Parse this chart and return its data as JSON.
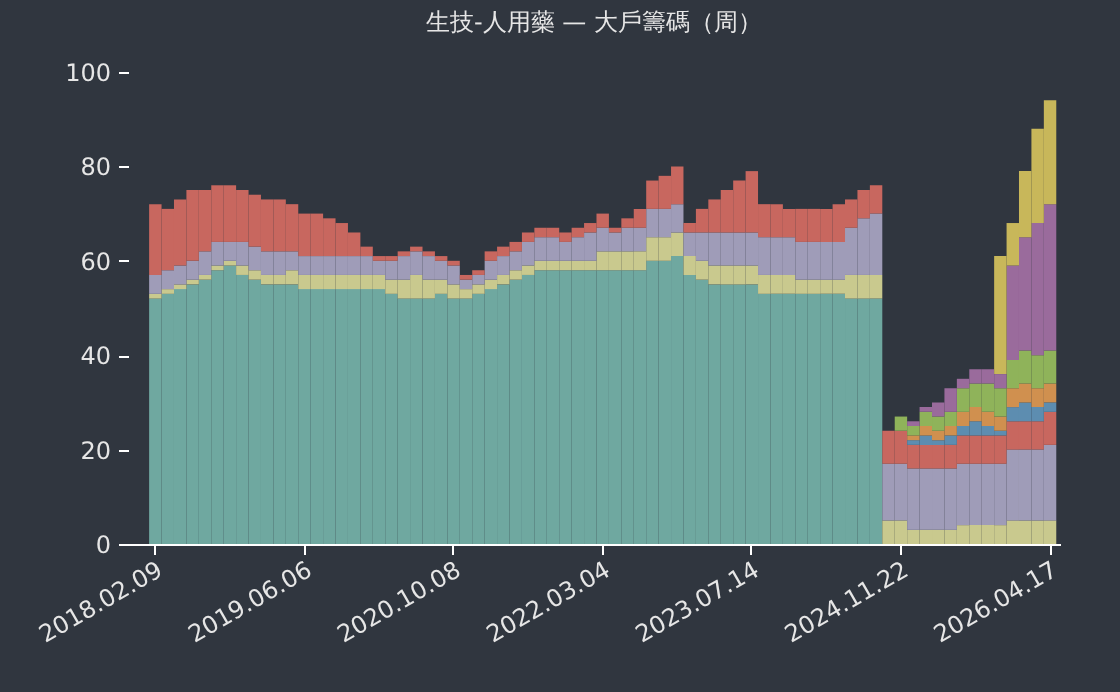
{
  "chart_data": {
    "type": "bar",
    "title": "生技-人用藥 — 大戶籌碼（周）",
    "stacked": true,
    "categories": [
      "2018.02.09",
      null,
      null,
      null,
      null,
      null,
      null,
      null,
      null,
      null,
      null,
      null,
      "2019.06.06",
      null,
      null,
      null,
      null,
      null,
      null,
      null,
      null,
      null,
      null,
      null,
      "2020.10.08",
      null,
      null,
      null,
      null,
      null,
      null,
      null,
      null,
      null,
      null,
      null,
      "2022.03.04",
      null,
      null,
      null,
      null,
      null,
      null,
      null,
      null,
      null,
      null,
      null,
      "2023.07.14",
      null,
      null,
      null,
      null,
      null,
      null,
      null,
      null,
      null,
      null,
      null,
      "2024.11.22",
      null,
      null,
      null,
      null,
      null,
      null,
      null,
      null,
      null,
      null,
      null,
      "2026.04.17"
    ],
    "series": [
      {
        "color": "#6fa8a0",
        "values": [
          52,
          53,
          54,
          55,
          56,
          58,
          59,
          57,
          56,
          55,
          55,
          55,
          54,
          54,
          54,
          54,
          54,
          54,
          54,
          53,
          52,
          52,
          52,
          53,
          52,
          52,
          53,
          54,
          55,
          56,
          57,
          58,
          58,
          58,
          58,
          58,
          58,
          58,
          58,
          58,
          60,
          60,
          61,
          57,
          56,
          55,
          55,
          55,
          55,
          53,
          53,
          53,
          53,
          53,
          53,
          53,
          52,
          52,
          52,
          null,
          null,
          null,
          null,
          null,
          null,
          null,
          null,
          null,
          null,
          null,
          null,
          null,
          null
        ]
      },
      {
        "color": "#c9c98e",
        "values": [
          1,
          1,
          1,
          1,
          1,
          1,
          1,
          2,
          2,
          2,
          2,
          3,
          3,
          3,
          3,
          3,
          3,
          3,
          3,
          3,
          4,
          5,
          4,
          3,
          3,
          2,
          2,
          2,
          2,
          2,
          2,
          2,
          2,
          2,
          2,
          2,
          4,
          4,
          4,
          4,
          5,
          5,
          5,
          4,
          4,
          4,
          4,
          4,
          4,
          4,
          4,
          4,
          3,
          3,
          3,
          3,
          5,
          5,
          5,
          5,
          5,
          3,
          3,
          3,
          3,
          4,
          4,
          4,
          4,
          5,
          5,
          5,
          5
        ]
      },
      {
        "color": "#9f9cb8",
        "values": [
          4,
          4,
          4,
          4,
          5,
          5,
          4,
          5,
          5,
          5,
          5,
          4,
          4,
          4,
          4,
          4,
          4,
          4,
          3,
          4,
          5,
          5,
          5,
          4,
          4,
          2,
          2,
          4,
          4,
          4,
          5,
          5,
          5,
          4,
          5,
          6,
          5,
          4,
          5,
          5,
          6,
          6,
          6,
          5,
          6,
          7,
          7,
          7,
          7,
          8,
          8,
          8,
          8,
          8,
          8,
          8,
          10,
          12,
          13,
          12,
          12,
          13,
          13,
          13,
          13,
          13,
          13,
          13,
          13,
          15,
          15,
          15,
          16
        ]
      },
      {
        "color": "#c8675f",
        "values": [
          15,
          13,
          14,
          15,
          13,
          12,
          12,
          11,
          11,
          11,
          11,
          10,
          9,
          9,
          8,
          7,
          5,
          2,
          1,
          1,
          1,
          1,
          1,
          1,
          1,
          1,
          1,
          2,
          2,
          2,
          2,
          2,
          2,
          2,
          2,
          2,
          3,
          1,
          2,
          4,
          6,
          7,
          8,
          2,
          5,
          7,
          9,
          11,
          13,
          7,
          7,
          6,
          7,
          7,
          7,
          8,
          6,
          6,
          6,
          7,
          7,
          5,
          5,
          5,
          5,
          6,
          6,
          6,
          6,
          6,
          6,
          6,
          7
        ]
      },
      {
        "color": "#5d8db0",
        "values": [
          null,
          null,
          null,
          null,
          null,
          null,
          null,
          null,
          null,
          null,
          null,
          null,
          null,
          null,
          null,
          null,
          null,
          null,
          null,
          null,
          null,
          null,
          null,
          null,
          null,
          null,
          null,
          null,
          null,
          null,
          null,
          null,
          null,
          null,
          null,
          null,
          null,
          null,
          null,
          null,
          null,
          null,
          null,
          null,
          null,
          null,
          null,
          null,
          null,
          null,
          null,
          null,
          null,
          null,
          null,
          null,
          null,
          null,
          null,
          null,
          null,
          1,
          2,
          1,
          2,
          2,
          3,
          2,
          1,
          3,
          4,
          3,
          2
        ]
      },
      {
        "color": "#d0904f",
        "values": [
          null,
          null,
          null,
          null,
          null,
          null,
          null,
          null,
          null,
          null,
          null,
          null,
          null,
          null,
          null,
          null,
          null,
          null,
          null,
          null,
          null,
          null,
          null,
          null,
          null,
          null,
          null,
          null,
          null,
          null,
          null,
          null,
          null,
          null,
          null,
          null,
          null,
          null,
          null,
          null,
          null,
          null,
          null,
          null,
          null,
          null,
          null,
          null,
          null,
          null,
          null,
          null,
          null,
          null,
          null,
          null,
          null,
          null,
          null,
          null,
          null,
          1,
          2,
          2,
          2,
          3,
          3,
          3,
          3,
          4,
          4,
          4,
          4
        ]
      },
      {
        "color": "#8fb35a",
        "values": [
          null,
          null,
          null,
          null,
          null,
          null,
          null,
          null,
          null,
          null,
          null,
          null,
          null,
          null,
          null,
          null,
          null,
          null,
          null,
          null,
          null,
          null,
          null,
          null,
          null,
          null,
          null,
          null,
          null,
          null,
          null,
          null,
          null,
          null,
          null,
          null,
          null,
          null,
          null,
          null,
          null,
          null,
          null,
          null,
          null,
          null,
          null,
          null,
          null,
          null,
          null,
          null,
          null,
          null,
          null,
          null,
          null,
          null,
          null,
          null,
          3,
          2,
          3,
          3,
          3,
          5,
          5,
          6,
          6,
          6,
          7,
          7,
          7
        ]
      },
      {
        "color": "#9a6b9c",
        "values": [
          null,
          null,
          null,
          null,
          null,
          null,
          null,
          null,
          null,
          null,
          null,
          null,
          null,
          null,
          null,
          null,
          null,
          null,
          null,
          null,
          null,
          null,
          null,
          null,
          null,
          null,
          null,
          null,
          null,
          null,
          null,
          null,
          null,
          null,
          null,
          null,
          null,
          null,
          null,
          null,
          null,
          null,
          null,
          null,
          null,
          null,
          null,
          null,
          null,
          null,
          null,
          null,
          null,
          null,
          null,
          null,
          null,
          null,
          null,
          null,
          null,
          1,
          1,
          3,
          5,
          2,
          3,
          3,
          3,
          20,
          24,
          28,
          31
        ]
      },
      {
        "color": "#c8b75a",
        "values": [
          null,
          null,
          null,
          null,
          null,
          null,
          null,
          null,
          null,
          null,
          null,
          null,
          null,
          null,
          null,
          null,
          null,
          null,
          null,
          null,
          null,
          null,
          null,
          null,
          null,
          null,
          null,
          null,
          null,
          null,
          null,
          null,
          null,
          null,
          null,
          null,
          null,
          null,
          null,
          null,
          null,
          null,
          null,
          null,
          null,
          null,
          null,
          null,
          null,
          null,
          null,
          null,
          null,
          null,
          null,
          null,
          null,
          null,
          null,
          null,
          null,
          null,
          null,
          null,
          null,
          null,
          null,
          null,
          25,
          9,
          14,
          20,
          22
        ]
      }
    ],
    "ylim": [
      0,
      100
    ],
    "yticks": [
      0,
      20,
      40,
      60,
      80,
      100
    ],
    "grid": false,
    "legend": false
  }
}
